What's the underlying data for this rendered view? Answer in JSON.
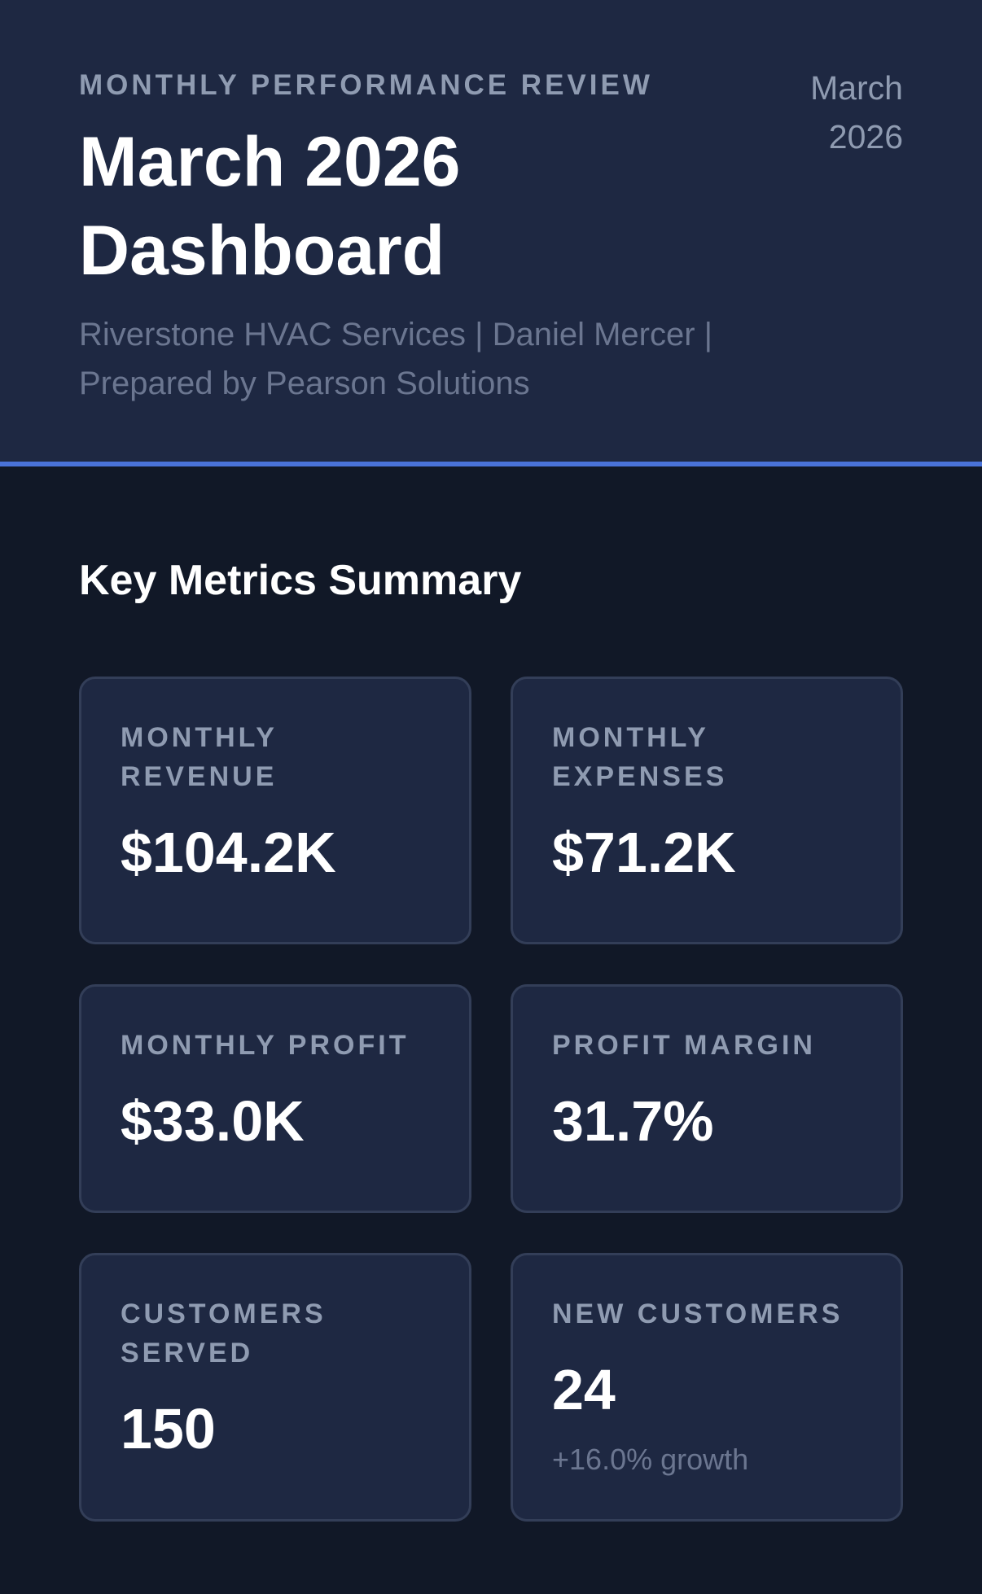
{
  "header": {
    "eyebrow": "MONTHLY PERFORMANCE REVIEW",
    "title": "March 2026 Dashboard",
    "subtitle": "Riverstone HVAC Services | Daniel Mercer | Prepared by Pearson Solutions",
    "date": "March 2026"
  },
  "section": {
    "title": "Key Metrics Summary"
  },
  "metrics": [
    {
      "label": "MONTHLY REVENUE",
      "value": "$104.2K"
    },
    {
      "label": "MONTHLY EXPENSES",
      "value": "$71.2K"
    },
    {
      "label": "MONTHLY PROFIT",
      "value": "$33.0K"
    },
    {
      "label": "PROFIT MARGIN",
      "value": "31.7%"
    },
    {
      "label": "CUSTOMERS SERVED",
      "value": "150"
    },
    {
      "label": "NEW CUSTOMERS",
      "value": "24",
      "note": "+16.0% growth"
    }
  ],
  "colors": {
    "background": "#111827",
    "header_background": "#1e2842",
    "accent": "#4a73d9",
    "card_background": "#1e2842",
    "card_border": "#333e58",
    "muted_text": "#8f9bb1"
  }
}
